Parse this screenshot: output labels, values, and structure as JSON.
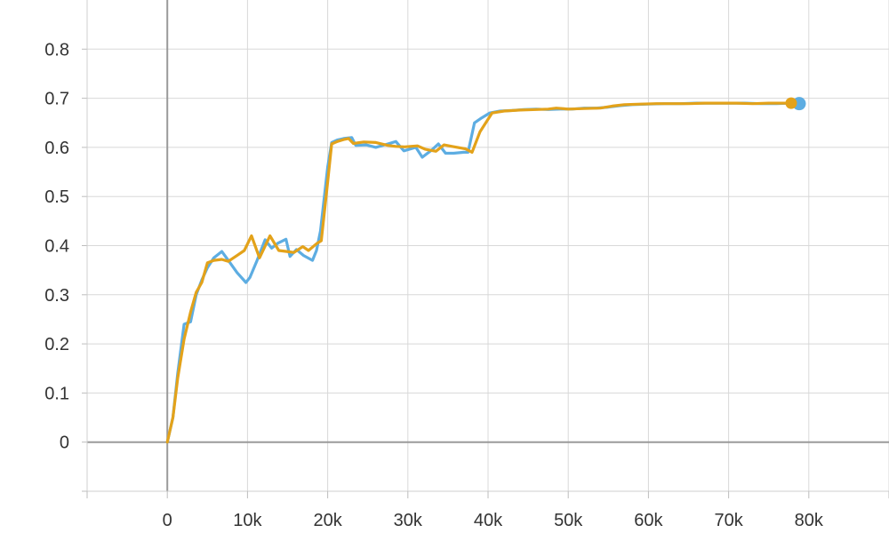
{
  "chart_data": {
    "type": "line",
    "title": "",
    "xlabel": "",
    "ylabel": "",
    "xlim": [
      -10000,
      90000
    ],
    "ylim": [
      -0.1,
      0.9
    ],
    "x_ticks": [
      0,
      10000,
      20000,
      30000,
      40000,
      50000,
      60000,
      70000,
      80000
    ],
    "x_tick_labels": [
      "0",
      "10k",
      "20k",
      "30k",
      "40k",
      "50k",
      "60k",
      "70k",
      "80k"
    ],
    "y_ticks": [
      0,
      0.1,
      0.2,
      0.3,
      0.4,
      0.5,
      0.6,
      0.7,
      0.8
    ],
    "y_tick_labels": [
      "0",
      "0.1",
      "0.2",
      "0.3",
      "0.4",
      "0.5",
      "0.6",
      "0.7",
      "0.8"
    ],
    "grid": true,
    "series": [
      {
        "color": "#5dade2",
        "x": [
          0,
          700,
          1300,
          2100,
          2900,
          3600,
          4300,
          5000,
          5800,
          6800,
          7600,
          8700,
          9800,
          10300,
          11200,
          12200,
          13000,
          13800,
          14800,
          15300,
          16100,
          17000,
          18100,
          18600,
          19100,
          20000,
          20500,
          21200,
          22000,
          23000,
          23500,
          24800,
          26000,
          27500,
          28500,
          29500,
          31000,
          31800,
          33000,
          33800,
          34700,
          35700,
          37000,
          37500,
          38300,
          39200,
          40200,
          41500,
          43000,
          44500,
          46000,
          47500,
          49000,
          50500,
          52000,
          53500,
          55000,
          56500,
          58000,
          60000,
          62000,
          64000,
          66000,
          68000,
          70000,
          72000,
          74000,
          76000,
          77500,
          78800
        ],
        "y": [
          0.0,
          0.05,
          0.14,
          0.24,
          0.245,
          0.3,
          0.33,
          0.355,
          0.375,
          0.388,
          0.37,
          0.345,
          0.325,
          0.335,
          0.37,
          0.412,
          0.395,
          0.405,
          0.413,
          0.378,
          0.392,
          0.38,
          0.37,
          0.39,
          0.43,
          0.56,
          0.61,
          0.615,
          0.618,
          0.62,
          0.604,
          0.605,
          0.6,
          0.607,
          0.612,
          0.593,
          0.6,
          0.58,
          0.595,
          0.607,
          0.588,
          0.588,
          0.59,
          0.59,
          0.65,
          0.66,
          0.67,
          0.674,
          0.675,
          0.677,
          0.678,
          0.677,
          0.678,
          0.678,
          0.68,
          0.68,
          0.682,
          0.685,
          0.687,
          0.688,
          0.689,
          0.689,
          0.69,
          0.69,
          0.69,
          0.69,
          0.689,
          0.689,
          0.69,
          0.689
        ]
      },
      {
        "color": "#e3a21a",
        "x": [
          0,
          700,
          1300,
          2100,
          2900,
          3600,
          4300,
          5000,
          5800,
          6800,
          7600,
          8700,
          9600,
          10500,
          11500,
          12800,
          13900,
          14900,
          15800,
          16900,
          17600,
          18700,
          19200,
          20000,
          20500,
          21200,
          22000,
          22600,
          23200,
          24500,
          26000,
          27500,
          28500,
          29600,
          31200,
          32200,
          33500,
          34500,
          35500,
          37200,
          38000,
          39000,
          40500,
          42000,
          44000,
          46000,
          47500,
          48500,
          50000,
          52000,
          54000,
          55500,
          57000,
          59000,
          61000,
          63000,
          65000,
          67000,
          69000,
          71000,
          73000,
          75000,
          77800
        ],
        "y": [
          0.0,
          0.05,
          0.13,
          0.21,
          0.265,
          0.305,
          0.325,
          0.365,
          0.37,
          0.372,
          0.368,
          0.38,
          0.39,
          0.42,
          0.375,
          0.42,
          0.39,
          0.388,
          0.386,
          0.398,
          0.39,
          0.405,
          0.41,
          0.53,
          0.607,
          0.612,
          0.616,
          0.618,
          0.608,
          0.611,
          0.61,
          0.604,
          0.602,
          0.601,
          0.603,
          0.596,
          0.592,
          0.605,
          0.602,
          0.597,
          0.59,
          0.632,
          0.67,
          0.674,
          0.676,
          0.677,
          0.678,
          0.68,
          0.678,
          0.679,
          0.68,
          0.684,
          0.687,
          0.688,
          0.689,
          0.689,
          0.689,
          0.69,
          0.69,
          0.69,
          0.689,
          0.69,
          0.69
        ]
      }
    ]
  }
}
